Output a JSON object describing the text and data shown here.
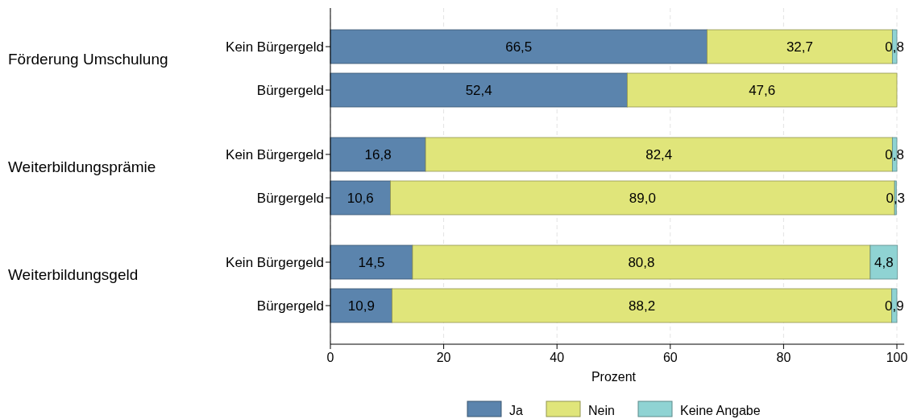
{
  "chart_data": {
    "type": "bar",
    "orientation": "horizontal",
    "stacked": true,
    "categories": [
      "Kein Bürgergeld",
      "Bürgergeld",
      "Kein Bürgergeld",
      "Bürgergeld",
      "Kein Bürgergeld",
      "Bürgergeld"
    ],
    "series": [
      {
        "name": "Ja",
        "color": "#5b84ad",
        "values": [
          66.5,
          52.4,
          16.8,
          10.6,
          14.5,
          10.9
        ],
        "value_labels": [
          "66,5",
          "52,4",
          "16,8",
          "10,6",
          "14,5",
          "10,9"
        ]
      },
      {
        "name": "Nein",
        "color": "#e0e57a",
        "values": [
          32.7,
          47.6,
          82.4,
          89.0,
          80.8,
          88.2
        ],
        "value_labels": [
          "32,7",
          "47,6",
          "82,4",
          "89,0",
          "80,8",
          "88,2"
        ]
      },
      {
        "name": "Keine Angabe",
        "color": "#8fd3d3",
        "values": [
          0.8,
          null,
          0.8,
          0.3,
          4.8,
          0.9
        ],
        "value_labels": [
          "0,8",
          null,
          "0,8",
          "0,3",
          "4,8",
          "0,9"
        ]
      }
    ],
    "annotations": [
      "Förderung Umschulung",
      "Weiterbildungsprämie",
      "Weiterbildungsgeld"
    ],
    "xlabel": "Prozent",
    "xlim": [
      0,
      101.3
    ],
    "xticks": [
      0,
      20,
      40,
      60,
      80,
      100
    ],
    "grid": "x",
    "legend": "bottom"
  }
}
